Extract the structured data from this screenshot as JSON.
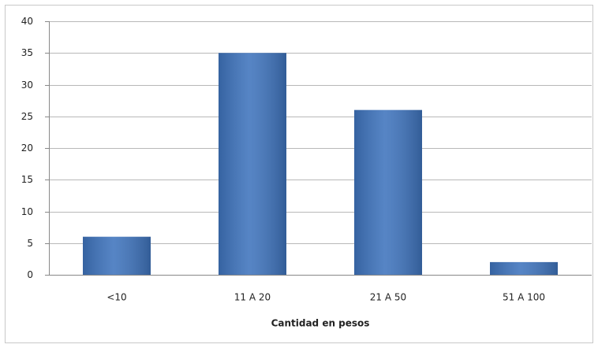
{
  "chart_data": {
    "type": "bar",
    "x_label": "Cantidad en pesos",
    "categories": [
      "<10",
      "11 A 20",
      "21 A 50",
      "51 A 100"
    ],
    "values": [
      6,
      35,
      26,
      2
    ],
    "color": "#3f74bd",
    "ylim": [
      0,
      40
    ],
    "yticks": [
      0,
      5,
      10,
      15,
      20,
      25,
      30,
      35,
      40
    ],
    "grid": true
  }
}
